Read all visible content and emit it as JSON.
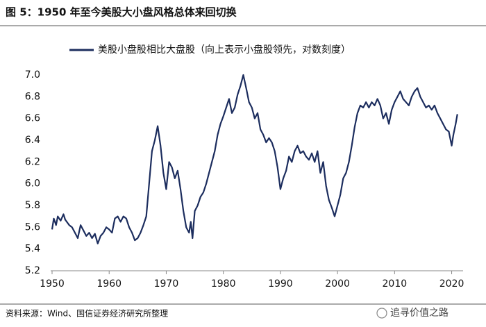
{
  "chart_data": {
    "type": "line",
    "title": "图 5：1950 年至今美股大小盘风格总体来回切换",
    "source": "资料来源：Wind、国信证券经济研究所整理",
    "watermark": "追寻价值之路",
    "x": [
      1950,
      1950.3,
      1950.7,
      1951,
      1951.5,
      1952,
      1952.3,
      1953,
      1953.5,
      1954,
      1954.5,
      1955,
      1955.5,
      1956,
      1956.5,
      1957,
      1957.5,
      1958,
      1958.5,
      1959,
      1959.5,
      1960,
      1960.5,
      1961,
      1961.5,
      1962,
      1962.5,
      1963,
      1963.5,
      1964,
      1964.5,
      1965,
      1965.5,
      1966,
      1966.5,
      1967,
      1967.5,
      1968,
      1968.5,
      1969,
      1969.5,
      1970,
      1970.5,
      1971,
      1971.5,
      1972,
      1972.5,
      1973,
      1973.5,
      1974,
      1974.3,
      1974.6,
      1975,
      1975.5,
      1976,
      1976.5,
      1977,
      1977.5,
      1978,
      1978.5,
      1979,
      1979.5,
      1980,
      1980.5,
      1981,
      1981.5,
      1982,
      1982.5,
      1983,
      1983.5,
      1984,
      1984.5,
      1985,
      1985.5,
      1986,
      1986.5,
      1987,
      1987.5,
      1988,
      1988.5,
      1989,
      1989.5,
      1990,
      1990.5,
      1991,
      1991.5,
      1992,
      1992.5,
      1993,
      1993.5,
      1994,
      1994.5,
      1995,
      1995.5,
      1996,
      1996.5,
      1997,
      1997.5,
      1998,
      1998.5,
      1999,
      1999.5,
      2000,
      2000.5,
      2001,
      2001.5,
      2002,
      2002.5,
      2003,
      2003.5,
      2004,
      2004.5,
      2005,
      2005.5,
      2006,
      2006.5,
      2007,
      2007.5,
      2008,
      2008.5,
      2009,
      2009.5,
      2010,
      2010.5,
      2011,
      2011.5,
      2012,
      2012.5,
      2013,
      2013.5,
      2014,
      2014.5,
      2015,
      2015.5,
      2016,
      2016.5,
      2017,
      2017.5,
      2018,
      2018.5,
      2019,
      2019.5,
      2020,
      2020.3,
      2020.7,
      2021
    ],
    "series": [
      {
        "name": "美股小盘股相比大盘股（向上表示小盘股领先，对数刻度）",
        "color": "#1c2d5e",
        "values": [
          5.58,
          5.68,
          5.62,
          5.7,
          5.66,
          5.72,
          5.67,
          5.62,
          5.6,
          5.55,
          5.5,
          5.62,
          5.57,
          5.52,
          5.55,
          5.5,
          5.54,
          5.45,
          5.52,
          5.55,
          5.6,
          5.58,
          5.55,
          5.68,
          5.7,
          5.65,
          5.7,
          5.68,
          5.6,
          5.55,
          5.48,
          5.5,
          5.55,
          5.62,
          5.7,
          6.0,
          6.3,
          6.4,
          6.53,
          6.35,
          6.1,
          5.95,
          6.2,
          6.15,
          6.05,
          6.12,
          5.95,
          5.75,
          5.6,
          5.55,
          5.65,
          5.5,
          5.75,
          5.8,
          5.88,
          5.92,
          6.0,
          6.1,
          6.2,
          6.3,
          6.45,
          6.55,
          6.62,
          6.7,
          6.78,
          6.65,
          6.7,
          6.82,
          6.9,
          7.0,
          6.88,
          6.75,
          6.7,
          6.6,
          6.65,
          6.5,
          6.45,
          6.38,
          6.42,
          6.38,
          6.3,
          6.15,
          5.95,
          6.05,
          6.12,
          6.25,
          6.2,
          6.3,
          6.35,
          6.28,
          6.3,
          6.25,
          6.22,
          6.28,
          6.2,
          6.3,
          6.1,
          6.2,
          5.98,
          5.85,
          5.78,
          5.7,
          5.8,
          5.9,
          6.05,
          6.1,
          6.2,
          6.35,
          6.52,
          6.65,
          6.72,
          6.7,
          6.75,
          6.7,
          6.75,
          6.72,
          6.78,
          6.72,
          6.6,
          6.65,
          6.55,
          6.68,
          6.75,
          6.8,
          6.85,
          6.78,
          6.75,
          6.72,
          6.8,
          6.85,
          6.88,
          6.8,
          6.75,
          6.7,
          6.72,
          6.68,
          6.72,
          6.65,
          6.6,
          6.55,
          6.5,
          6.48,
          6.35,
          6.45,
          6.55,
          6.64
        ]
      }
    ],
    "xlim": [
      1950,
      2022
    ],
    "xticks": [
      1950,
      1960,
      1970,
      1980,
      1990,
      2000,
      2010,
      2020
    ],
    "ylim": [
      5.2,
      7.0
    ],
    "yticks": [
      {
        "value": 5.2,
        "label": "5.2"
      },
      {
        "value": 5.4,
        "label": "5.4"
      },
      {
        "value": 5.6,
        "label": "5.6"
      },
      {
        "value": 5.8,
        "label": "5.8"
      },
      {
        "value": 6.0,
        "label": "6.0"
      },
      {
        "value": 6.2,
        "label": "6.2"
      },
      {
        "value": 6.4,
        "label": "6.4"
      },
      {
        "value": 6.6,
        "label": "6.6"
      },
      {
        "value": 6.8,
        "label": "6.8"
      },
      {
        "value": 7.0,
        "label": "7.0"
      }
    ]
  }
}
